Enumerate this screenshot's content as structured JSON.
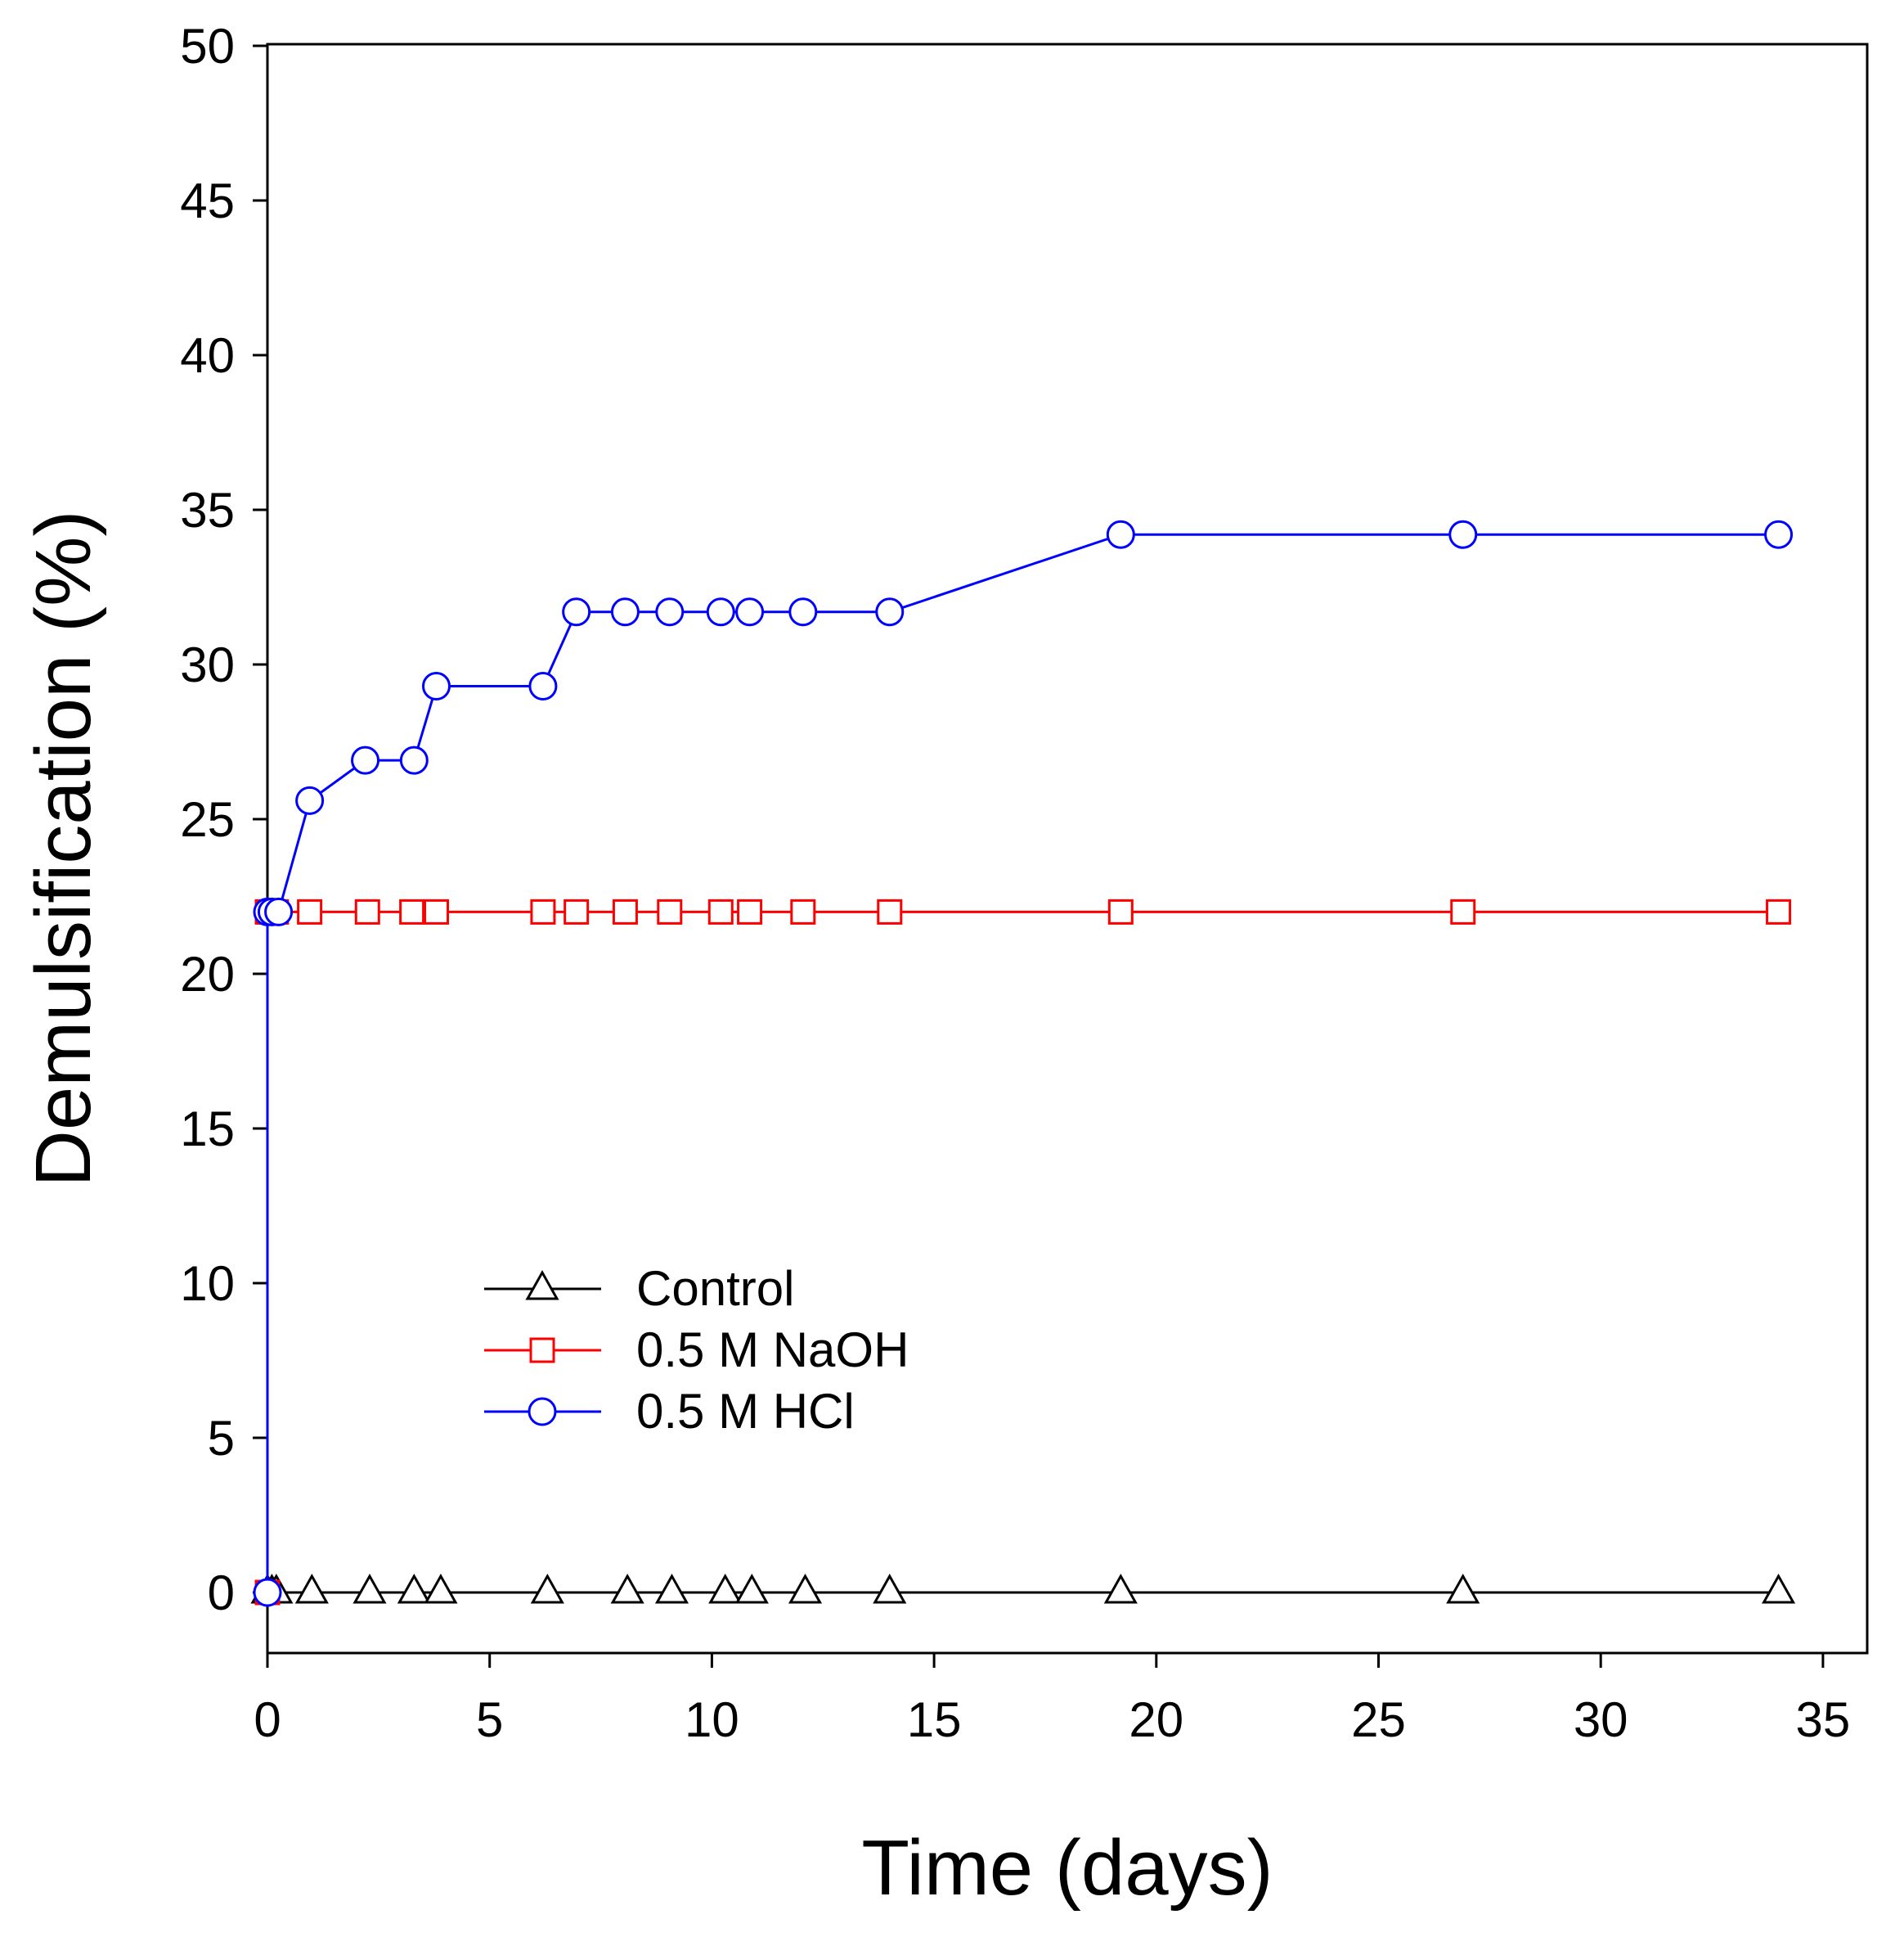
{
  "chart_data": {
    "type": "line",
    "title": "",
    "xlabel": "Time (days)",
    "ylabel": "Demulsification (%)",
    "xlim": [
      0,
      36
    ],
    "ylim": [
      -2,
      50
    ],
    "xticks": [
      0,
      5,
      10,
      15,
      20,
      25,
      30,
      35
    ],
    "yticks": [
      0,
      5,
      10,
      15,
      20,
      25,
      30,
      35,
      40,
      45,
      50
    ],
    "grid": false,
    "legend_position": "lower-left",
    "series": [
      {
        "name": "Control",
        "marker": "triangle",
        "color": "#000000",
        "x": [
          0,
          0.1,
          0.2,
          1.0,
          2.3,
          3.3,
          3.9,
          6.3,
          8.1,
          9.1,
          10.3,
          10.9,
          12.1,
          14.0,
          19.2,
          26.9,
          34.0
        ],
        "y": [
          0,
          0,
          0,
          0,
          0,
          0,
          0,
          0,
          0,
          0,
          0,
          0,
          0,
          0,
          0,
          0,
          0
        ]
      },
      {
        "name": "0.5 M NaOH",
        "marker": "square",
        "color": "#ff0000",
        "x": [
          0,
          0,
          0.1,
          0.2,
          0.95,
          2.25,
          3.25,
          3.8,
          6.2,
          6.95,
          8.05,
          9.05,
          10.2,
          10.85,
          12.05,
          14.0,
          19.2,
          26.9,
          34.0
        ],
        "y": [
          0,
          22,
          22,
          22,
          22,
          22,
          22,
          22,
          22,
          22,
          22,
          22,
          22,
          22,
          22,
          22,
          22,
          22,
          22
        ]
      },
      {
        "name": "0.5 M HCl",
        "marker": "circle",
        "color": "#0000ff",
        "x": [
          0,
          0,
          0.1,
          0.25,
          0.95,
          2.2,
          3.3,
          3.8,
          6.2,
          6.95,
          8.05,
          9.05,
          10.2,
          10.85,
          12.05,
          14.0,
          19.2,
          26.9,
          34.0
        ],
        "y": [
          0,
          22,
          22,
          22,
          25.6,
          26.9,
          26.9,
          29.3,
          29.3,
          31.7,
          31.7,
          31.7,
          31.7,
          31.7,
          31.7,
          31.7,
          34.2,
          34.2,
          34.2
        ]
      }
    ]
  }
}
